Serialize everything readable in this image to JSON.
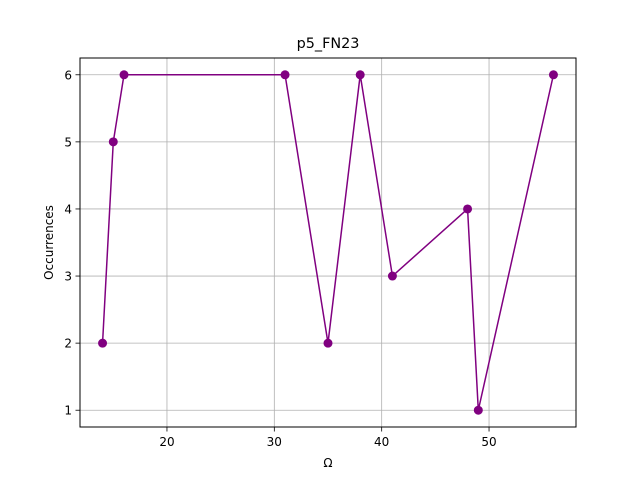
{
  "chart_data": {
    "type": "line",
    "title": "p5_FN23",
    "xlabel": "Ω",
    "ylabel": "Occurrences",
    "xlim": [
      11.9,
      58.1
    ],
    "ylim": [
      0.75,
      6.25
    ],
    "xticks": [
      20,
      30,
      40,
      50
    ],
    "yticks": [
      1,
      2,
      3,
      4,
      5,
      6
    ],
    "grid": true,
    "series": [
      {
        "color": "#800080",
        "marker": "circle",
        "x": [
          14,
          15,
          16,
          31,
          35,
          38,
          41,
          48,
          49,
          56
        ],
        "y": [
          2,
          5,
          6,
          6,
          2,
          6,
          3,
          4,
          1,
          6
        ]
      }
    ]
  }
}
